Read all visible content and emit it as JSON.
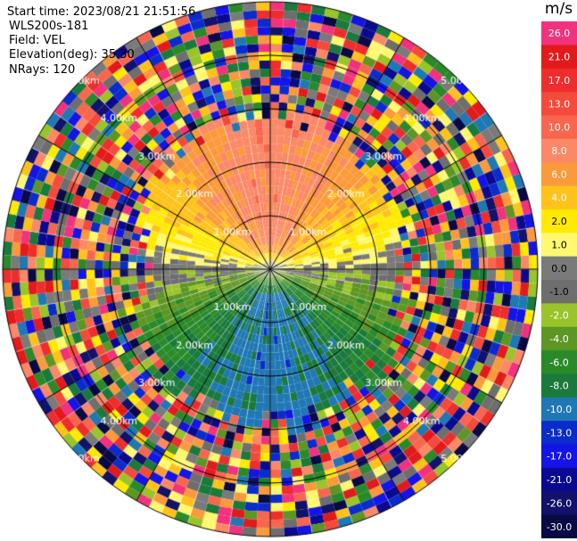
{
  "header": {
    "start_time": "Start time: 2023/08/21 21:51:56",
    "instrument": "WLS200s-181",
    "field": "Field: VEL",
    "elevation": "Elevation(deg): 35.30",
    "nrays": "NRays: 120"
  },
  "chart_data": {
    "type": "heatmap",
    "projection": "polar-ppi",
    "field": "VEL",
    "units": "m/s",
    "n_rays": 120,
    "range_rings_km": [
      1.0,
      2.0,
      3.0,
      4.0,
      5.0
    ],
    "ring_labels": [
      "1.00km",
      "2.00km",
      "3.00km",
      "4.00km",
      "5.00km"
    ],
    "max_range_km": 5.0,
    "radial_lines_deg": [
      0,
      30,
      60,
      90,
      120,
      150,
      180,
      210,
      240,
      270,
      300,
      330
    ],
    "colorbar": {
      "label": "m/s",
      "ticks": [
        "26.0",
        "21.0",
        "17.0",
        "13.0",
        "10.0",
        "8.0",
        "6.0",
        "4.0",
        "2.0",
        "1.0",
        "0.0",
        "-1.0",
        "-2.0",
        "-4.0",
        "-6.0",
        "-8.0",
        "-10.0",
        "-13.0",
        "-17.0",
        "-21.0",
        "-26.0",
        "-30.0"
      ],
      "colors": [
        "#f2327d",
        "#e31a1c",
        "#ee2d2d",
        "#f44a3c",
        "#f8664e",
        "#fb8866",
        "#fb9a3a",
        "#ffc21a",
        "#ffea00",
        "#fff870",
        "#7a7a7a",
        "#6e6e6e",
        "#9ac42a",
        "#5c9624",
        "#2a8a2a",
        "#1a7a3c",
        "#1f78b4",
        "#0a2ccc",
        "#1414e6",
        "#0a0a90",
        "#12126a",
        "#090945"
      ]
    },
    "observed_pattern": {
      "north_sector_within_2km": "positive 6-10 m/s (salmon/orange)",
      "south_sector_within_2km": "negative -6 to -10 m/s (green/blue)",
      "east_west_near_zero": "yellow/gray band 0 to 4 m/s",
      "beyond_2.5km": "noise (random colors)"
    }
  }
}
